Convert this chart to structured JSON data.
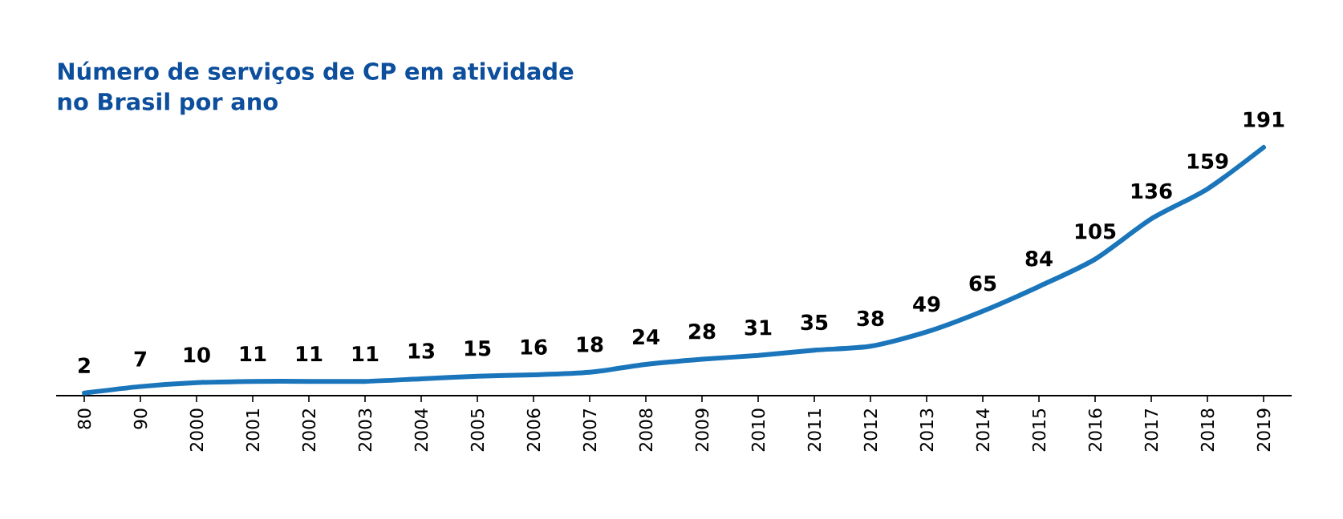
{
  "chart_data": {
    "type": "line",
    "title": "Número de serviços de CP em atividade no Brasil por ano",
    "categories": [
      "80",
      "90",
      "2000",
      "2001",
      "2002",
      "2003",
      "2004",
      "2005",
      "2006",
      "2007",
      "2008",
      "2009",
      "2010",
      "2011",
      "2012",
      "2013",
      "2014",
      "2015",
      "2016",
      "2017",
      "2018",
      "2019"
    ],
    "values": [
      2,
      7,
      10,
      11,
      11,
      11,
      13,
      15,
      16,
      18,
      24,
      28,
      31,
      35,
      38,
      49,
      65,
      84,
      105,
      136,
      159,
      191
    ],
    "color": "#1a75bb",
    "data_labels": true
  }
}
